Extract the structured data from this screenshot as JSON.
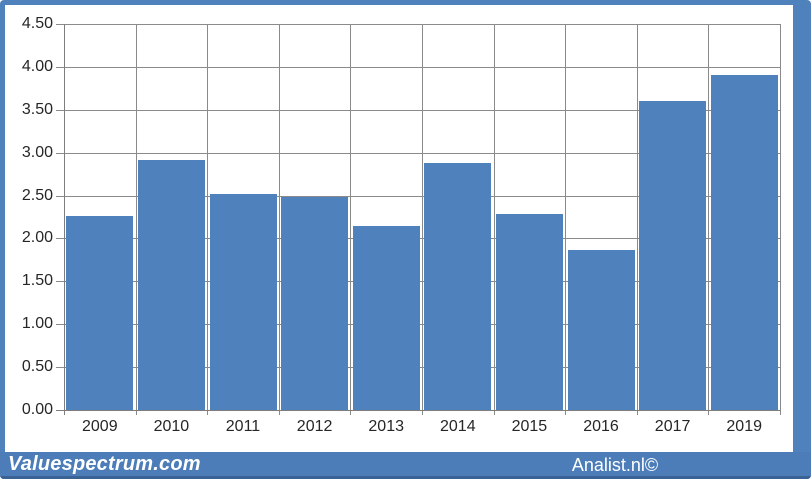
{
  "chart_data": {
    "type": "bar",
    "title": "",
    "xlabel": "",
    "ylabel": "",
    "categories": [
      "2009",
      "2010",
      "2011",
      "2012",
      "2013",
      "2014",
      "2015",
      "2016",
      "2017",
      "2019"
    ],
    "values": [
      2.26,
      2.91,
      2.52,
      2.48,
      2.15,
      2.88,
      2.29,
      1.86,
      3.6,
      3.9
    ],
    "ylim": [
      0,
      4.5
    ],
    "y_tick_step": 0.5,
    "y_tick_labels_top_to_bottom": [
      "4.50",
      "4.00",
      "3.50",
      "3.00",
      "2.50",
      "2.00",
      "1.50",
      "1.00",
      "0.50",
      "0.00"
    ],
    "grid": "both",
    "legend": "none",
    "bar_color": "#4f81bd",
    "gridline_color": "#8a8a8a",
    "axis_text_color": "#262626",
    "frame_color": "#4f81bd"
  },
  "footer": {
    "left_text": "Valuespectrum.com",
    "right_text": "Analist.nl©",
    "background": "#4c7db8",
    "text_color": "#ffffff"
  }
}
